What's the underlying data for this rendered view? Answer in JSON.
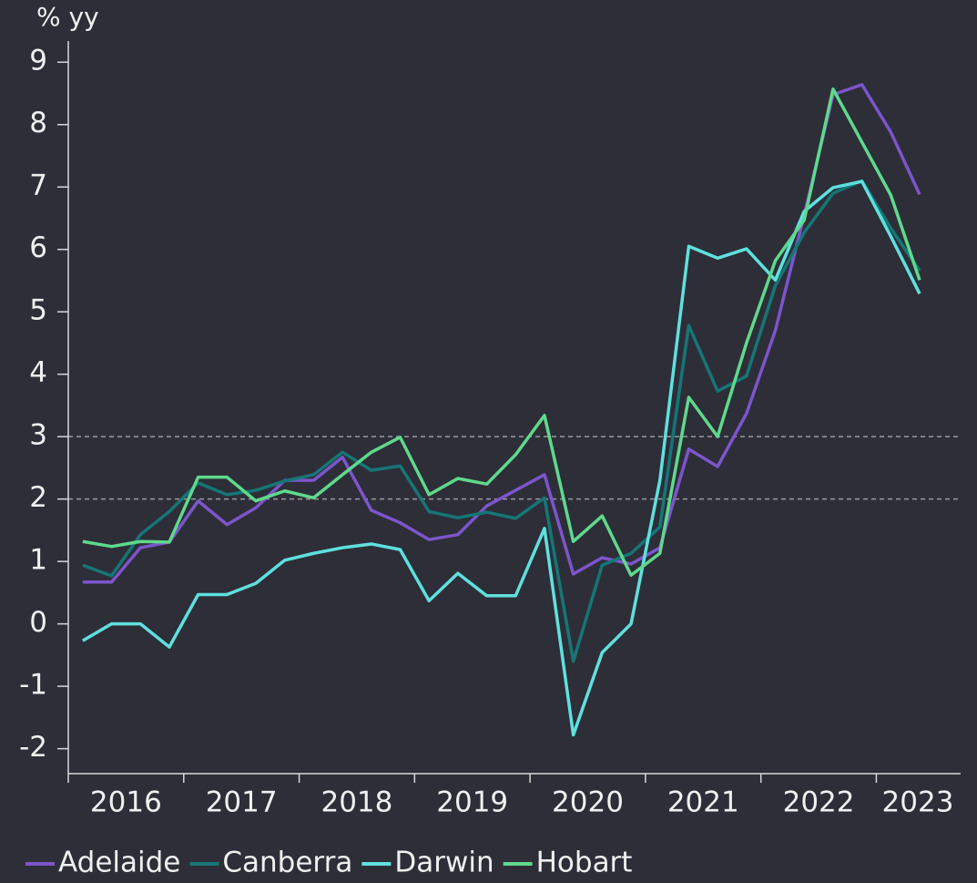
{
  "chart_data": {
    "type": "line",
    "y_label": "% yy",
    "x": [
      2016.125,
      2016.375,
      2016.625,
      2016.875,
      2017.125,
      2017.375,
      2017.625,
      2017.875,
      2018.125,
      2018.375,
      2018.625,
      2018.875,
      2019.125,
      2019.375,
      2019.625,
      2019.875,
      2020.125,
      2020.375,
      2020.625,
      2020.875,
      2021.125,
      2021.375,
      2021.625,
      2021.875,
      2022.125,
      2022.375,
      2022.625,
      2022.875,
      2023.125,
      2023.375
    ],
    "series": [
      {
        "name": "Adelaide",
        "color": "#7d55cc",
        "values": [
          0.67,
          0.67,
          1.22,
          1.31,
          1.97,
          1.59,
          1.86,
          2.3,
          2.3,
          2.67,
          1.82,
          1.62,
          1.35,
          1.43,
          1.89,
          2.14,
          2.39,
          0.8,
          1.06,
          0.96,
          1.22,
          2.8,
          2.52,
          3.37,
          4.7,
          6.55,
          8.48,
          8.64,
          7.88,
          6.88
        ]
      },
      {
        "name": "Canberra",
        "color": "#167676",
        "values": [
          0.94,
          0.77,
          1.43,
          1.8,
          2.26,
          2.07,
          2.14,
          2.29,
          2.39,
          2.75,
          2.46,
          2.53,
          1.8,
          1.7,
          1.79,
          1.69,
          2.02,
          -0.6,
          0.94,
          1.13,
          1.55,
          4.78,
          3.73,
          3.97,
          5.42,
          6.27,
          6.9,
          7.1,
          6.34,
          5.66
        ]
      },
      {
        "name": "Darwin",
        "color": "#5fe0de",
        "values": [
          -0.27,
          0,
          0,
          -0.37,
          0.47,
          0.47,
          0.65,
          1.02,
          1.13,
          1.22,
          1.28,
          1.19,
          0.37,
          0.81,
          0.45,
          0.45,
          1.53,
          -1.78,
          -0.46,
          0,
          2.3,
          6.05,
          5.86,
          6.01,
          5.51,
          6.61,
          6.99,
          7.09,
          6.21,
          5.29
        ]
      },
      {
        "name": "Hobart",
        "color": "#5fd98c",
        "values": [
          1.32,
          1.24,
          1.32,
          1.31,
          2.35,
          2.35,
          1.97,
          2.13,
          2.02,
          2.39,
          2.75,
          2.99,
          2.07,
          2.33,
          2.24,
          2.71,
          3.34,
          1.32,
          1.73,
          0.78,
          1.13,
          3.63,
          3.0,
          4.5,
          5.82,
          6.47,
          8.57,
          7.72,
          6.87,
          5.51
        ]
      }
    ],
    "xlim": [
      2016,
      2023.73
    ],
    "xticks": [
      2016,
      2017,
      2018,
      2019,
      2020,
      2021,
      2022,
      2023
    ],
    "ylim": [
      -2.4,
      9.3
    ],
    "yticks": [
      -2,
      -1,
      0,
      1,
      2,
      3,
      4,
      5,
      6,
      7,
      8,
      9
    ],
    "reference_lines": [
      2,
      3
    ],
    "legend": "bottom"
  }
}
